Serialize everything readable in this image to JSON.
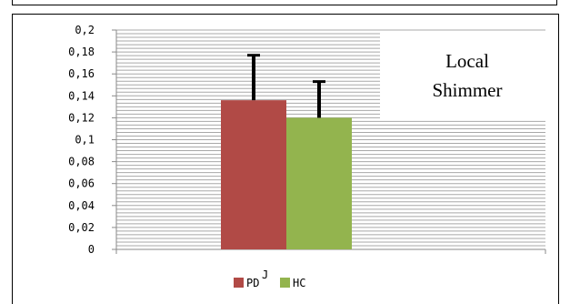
{
  "chart_data": {
    "type": "bar",
    "categories": [
      ""
    ],
    "series": [
      {
        "name": "PD",
        "values": [
          0.136
        ],
        "error": [
          0.041
        ],
        "color": "#b14a46"
      },
      {
        "name": "HC",
        "values": [
          0.12
        ],
        "error": [
          0.033
        ],
        "color": "#93b44e"
      }
    ],
    "yticks": [
      "0",
      "0,02",
      "0,04",
      "0,06",
      "0,08",
      "0,1",
      "0,12",
      "0,14",
      "0,16",
      "0,18",
      "0,2"
    ],
    "ylim": [
      0,
      0.2
    ],
    "title": "",
    "xlabel": "",
    "ylabel": "",
    "annotation": [
      "Local",
      "Shimmer"
    ],
    "legend_marker": "J",
    "legend_position": "bottom",
    "grid": true,
    "gridline_color": "#a8a8a8"
  }
}
